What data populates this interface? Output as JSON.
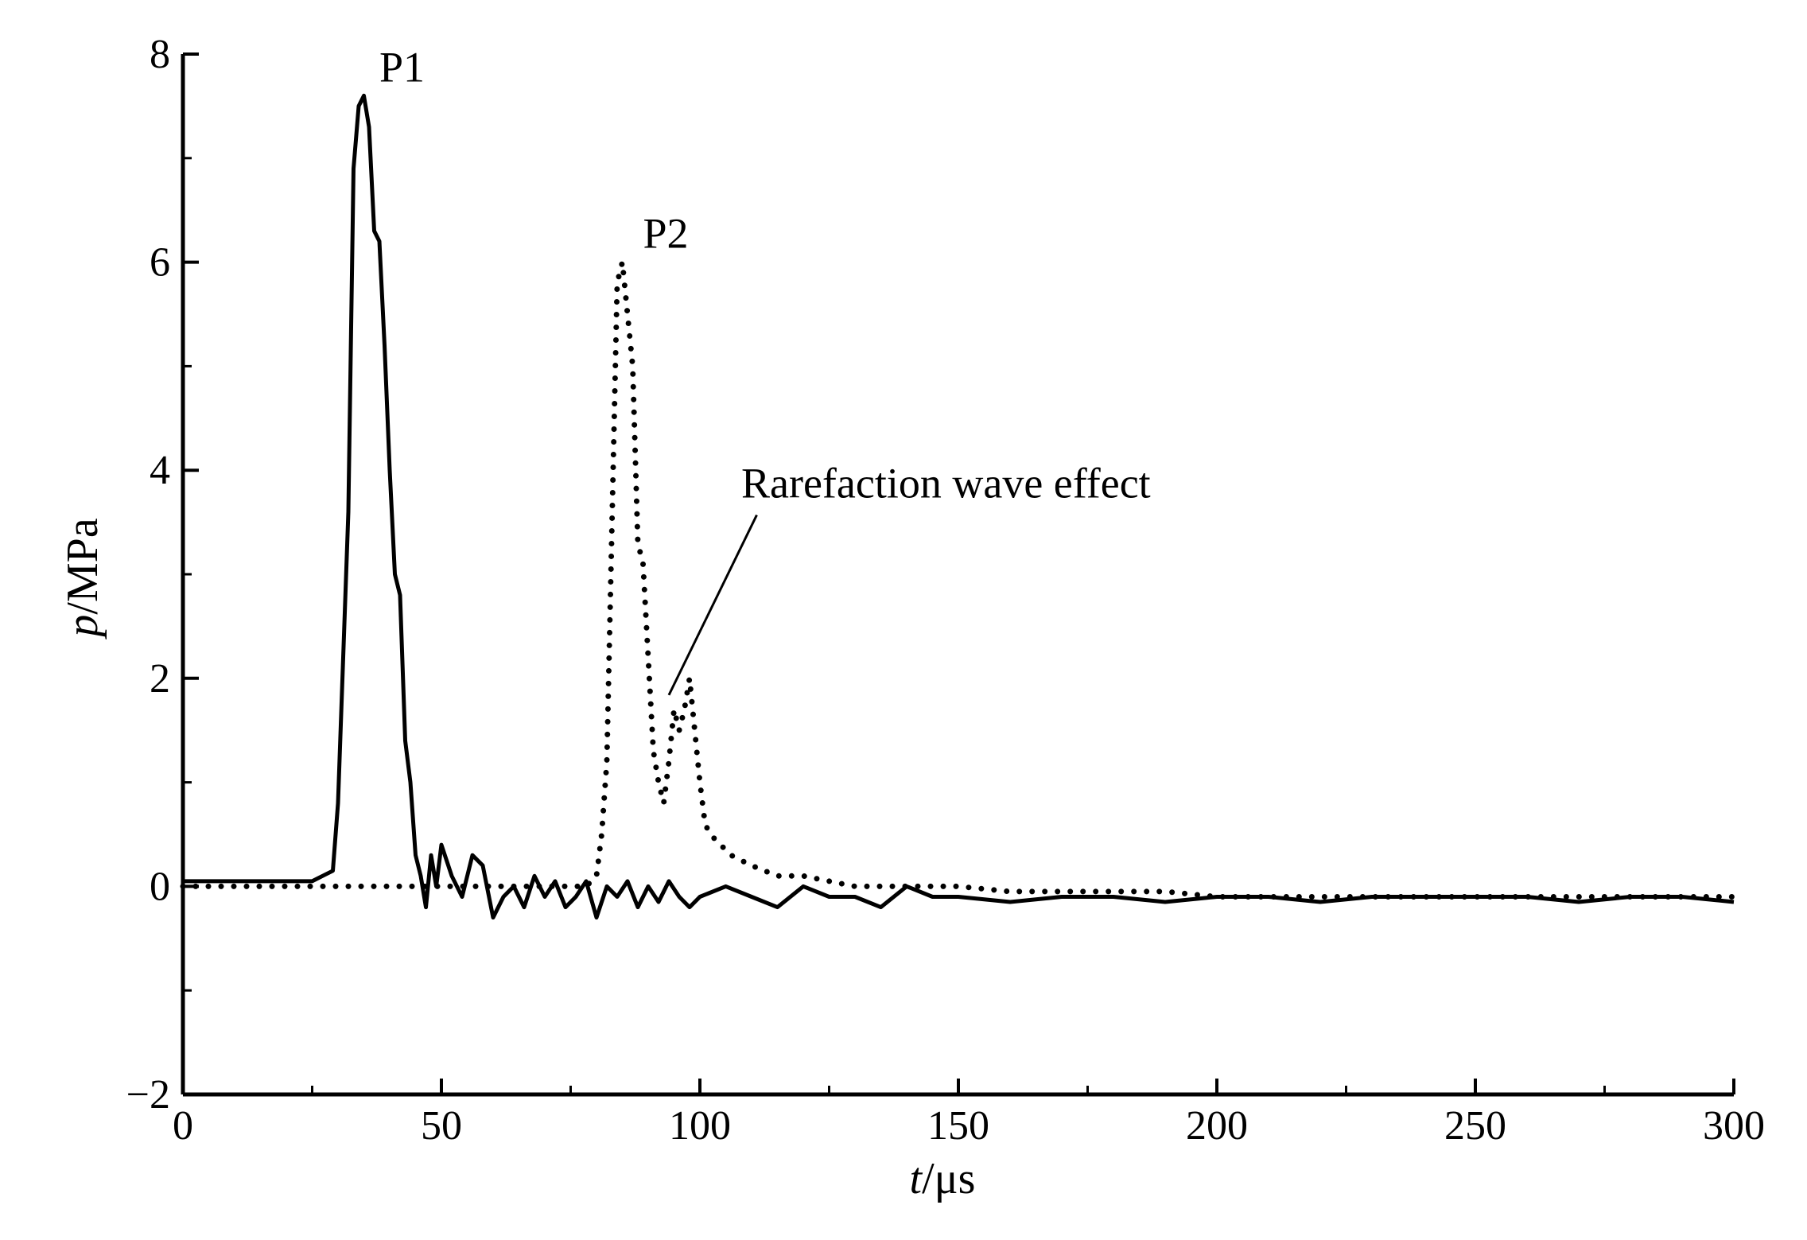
{
  "chart_data": {
    "type": "line",
    "xlabel_var": "t",
    "xlabel_unit": "/μs",
    "ylabel_var": "p",
    "ylabel_unit": "/MPa",
    "xlim": [
      0,
      300
    ],
    "ylim": [
      -2,
      8
    ],
    "xticks": [
      0,
      50,
      100,
      150,
      200,
      250,
      300
    ],
    "xtick_labels": [
      "0",
      "50",
      "100",
      "150",
      "200",
      "250",
      "300"
    ],
    "yticks": [
      -2,
      0,
      2,
      4,
      6,
      8
    ],
    "ytick_labels": [
      "−2",
      "0",
      "2",
      "4",
      "6",
      "8"
    ],
    "grid": false,
    "series": [
      {
        "style": "solid",
        "color": "#000000",
        "x": [
          0,
          5,
          10,
          15,
          20,
          25,
          27,
          29,
          30,
          31,
          32,
          33,
          34,
          35,
          36,
          37,
          38,
          39,
          40,
          41,
          42,
          43,
          44,
          45,
          46,
          47,
          48,
          49,
          50,
          52,
          54,
          56,
          58,
          60,
          62,
          64,
          66,
          68,
          70,
          72,
          74,
          76,
          78,
          80,
          82,
          84,
          86,
          88,
          90,
          92,
          94,
          96,
          98,
          100,
          105,
          110,
          115,
          120,
          125,
          130,
          135,
          140,
          145,
          150,
          160,
          170,
          180,
          190,
          200,
          210,
          220,
          230,
          240,
          250,
          260,
          270,
          280,
          290,
          300
        ],
        "y": [
          0.05,
          0.05,
          0.05,
          0.05,
          0.05,
          0.05,
          0.1,
          0.15,
          0.8,
          2.2,
          3.6,
          6.9,
          7.5,
          7.6,
          7.3,
          6.3,
          6.2,
          5.2,
          4.0,
          3.0,
          2.8,
          1.4,
          1.0,
          0.3,
          0.1,
          -0.2,
          0.3,
          0.0,
          0.4,
          0.1,
          -0.1,
          0.3,
          0.2,
          -0.3,
          -0.1,
          0.0,
          -0.2,
          0.1,
          -0.1,
          0.05,
          -0.2,
          -0.1,
          0.05,
          -0.3,
          0.0,
          -0.1,
          0.05,
          -0.2,
          0.0,
          -0.15,
          0.05,
          -0.1,
          -0.2,
          -0.1,
          0.0,
          -0.1,
          -0.2,
          0.0,
          -0.1,
          -0.1,
          -0.2,
          0.0,
          -0.1,
          -0.1,
          -0.15,
          -0.1,
          -0.1,
          -0.15,
          -0.1,
          -0.1,
          -0.15,
          -0.1,
          -0.1,
          -0.1,
          -0.1,
          -0.15,
          -0.1,
          -0.1,
          -0.15
        ]
      },
      {
        "style": "dotted",
        "color": "#000000",
        "x": [
          0,
          20,
          40,
          60,
          70,
          78,
          80,
          81,
          82,
          83,
          84,
          85,
          86,
          87,
          88,
          89,
          90,
          91,
          92,
          93,
          94,
          95,
          96,
          97,
          98,
          99,
          100,
          101,
          102,
          104,
          106,
          108,
          110,
          115,
          120,
          125,
          130,
          140,
          150,
          160,
          170,
          180,
          190,
          200,
          220,
          240,
          260,
          280,
          300
        ],
        "y": [
          0.0,
          0.0,
          0.0,
          0.0,
          0.0,
          0.0,
          0.1,
          0.5,
          1.2,
          3.5,
          5.8,
          6.0,
          5.5,
          5.0,
          3.3,
          3.1,
          2.2,
          1.3,
          1.0,
          0.8,
          1.2,
          1.7,
          1.5,
          1.7,
          2.0,
          1.5,
          1.0,
          0.6,
          0.5,
          0.4,
          0.3,
          0.25,
          0.2,
          0.1,
          0.1,
          0.05,
          0.0,
          0.0,
          0.0,
          -0.05,
          -0.05,
          -0.05,
          -0.05,
          -0.1,
          -0.1,
          -0.1,
          -0.1,
          -0.1,
          -0.1
        ]
      }
    ],
    "annotations": [
      {
        "text": "P1",
        "x": 38,
        "y": 7.6
      },
      {
        "text": "P2",
        "x": 89,
        "y": 6.0
      },
      {
        "text": "Rarefaction wave effect",
        "x": 108,
        "y": 3.6,
        "arrow_to": [
          94,
          1.9
        ]
      }
    ]
  }
}
